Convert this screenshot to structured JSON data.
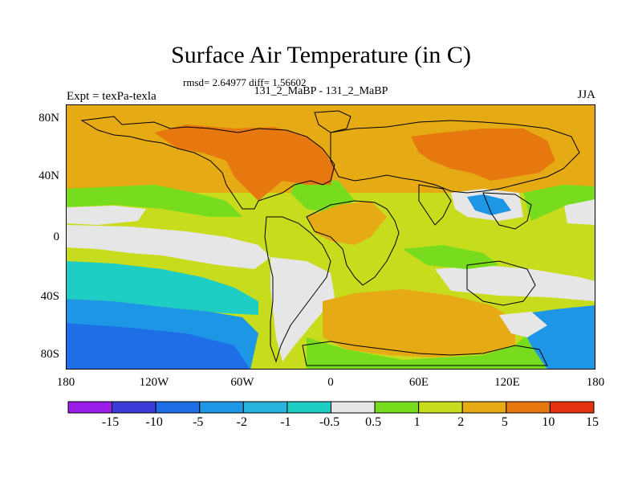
{
  "title": "Surface Air Temperature (in C)",
  "stats": "rmsd= 2.64977 diff= 1.56602",
  "subtitle": "131_2_MaBP - 131_2_MaBP",
  "experiment": "Expt = texPa-texla",
  "season": "JJA",
  "x_ticks": [
    "180",
    "120W",
    "60W",
    "0",
    "60E",
    "120E",
    "180"
  ],
  "y_ticks": [
    "80N",
    "40N",
    "0",
    "40S",
    "80S"
  ],
  "colorbar": {
    "labels": [
      "-15",
      "-10",
      "-5",
      "-2",
      "-1",
      "-0.5",
      "0.5",
      "1",
      "2",
      "5",
      "10",
      "15"
    ],
    "colors": [
      "#9b1ee8",
      "#3c3cd8",
      "#1e6ee6",
      "#1e96e6",
      "#28b4dc",
      "#1ecdc3",
      "#e6e6e6",
      "#78dc1e",
      "#c8dc1e",
      "#e6aa14",
      "#e6780f",
      "#e6320f"
    ]
  },
  "colors": {
    "ocean_default": "#c8dc1e",
    "warm": "#e6aa14",
    "hot": "#e6780f",
    "neutral": "#e6e6e6",
    "mild_green": "#78dc1e",
    "cool": "#1ecdc3",
    "cold": "#1e96e6",
    "colder": "#1e6ee6",
    "coast": "#000000"
  }
}
